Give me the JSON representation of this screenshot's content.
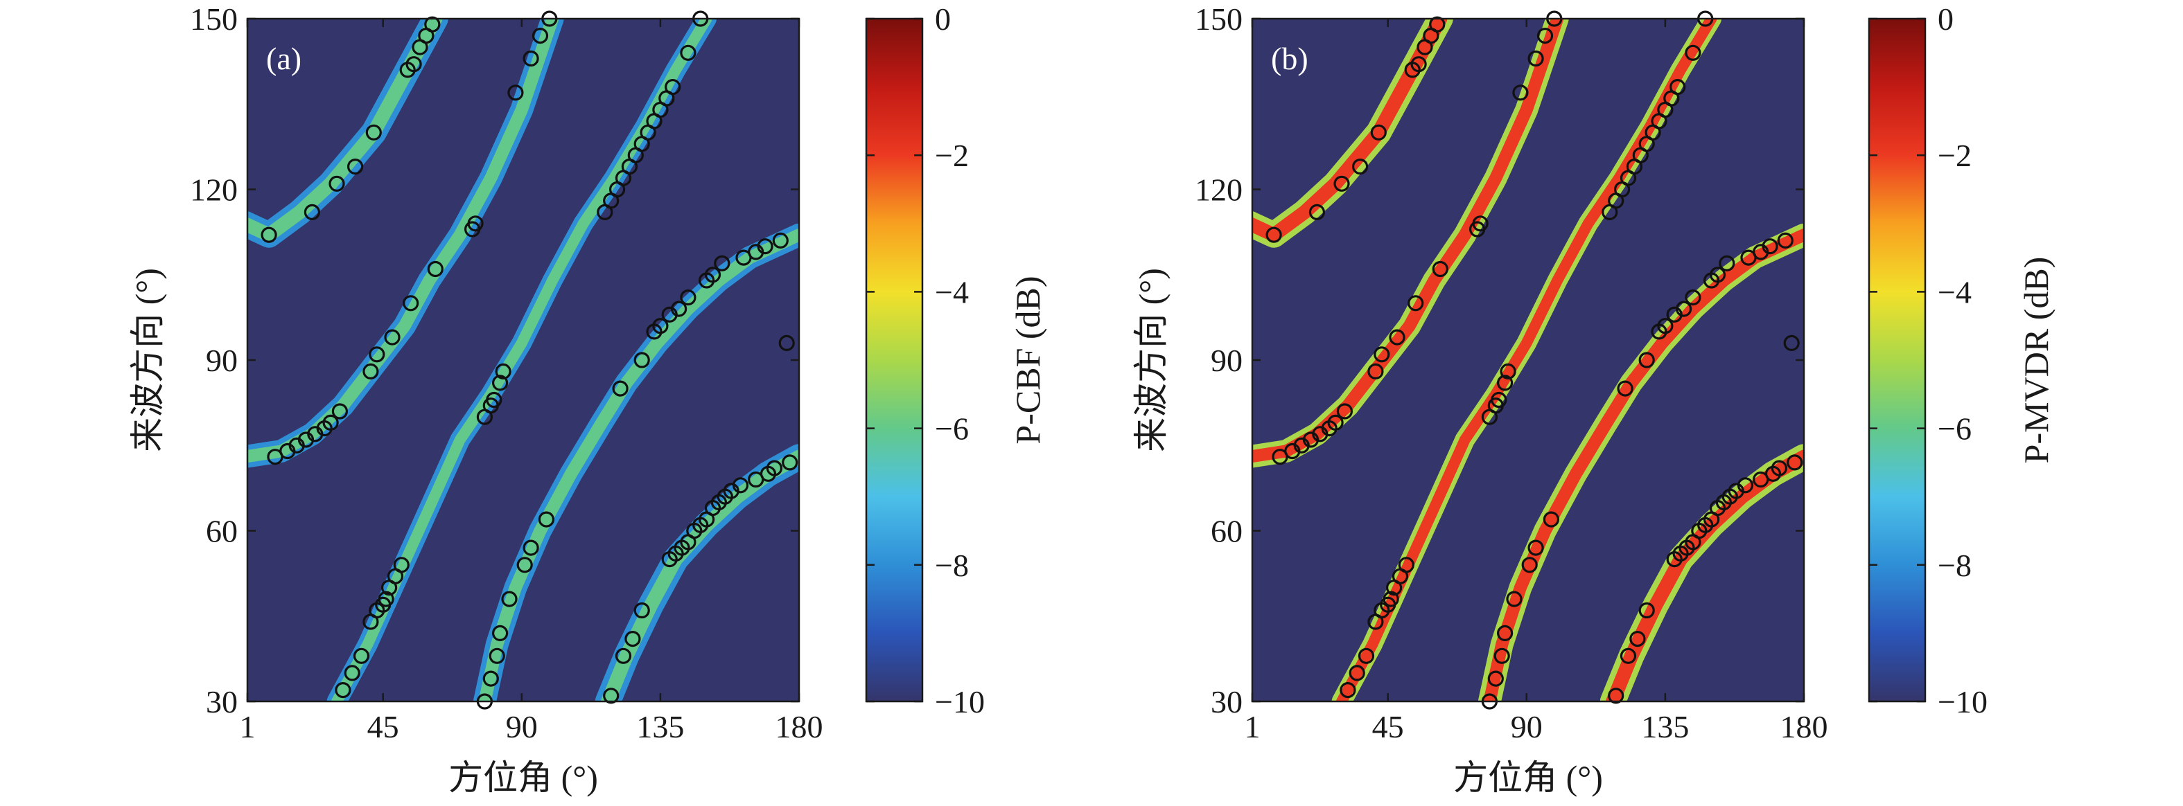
{
  "panels": [
    {
      "label": "(a)",
      "colorbar_label": "P-CBF (dB)"
    },
    {
      "label": "(b)",
      "colorbar_label": "P-MVDR (dB)"
    }
  ],
  "colors": {
    "background": "#34356a",
    "marker_edge": "#111111",
    "colormap": [
      "#34356a",
      "#2b55b8",
      "#2f8fd6",
      "#4cc0e8",
      "#63c98a",
      "#aad84a",
      "#f2e02a",
      "#f7a020",
      "#ec3a22",
      "#c21a14",
      "#7a0f0c"
    ]
  },
  "chart_data": [
    {
      "type": "heatmap",
      "panel": "(a)",
      "xlabel": "方位角 (°)",
      "ylabel": "来波方向 (°)",
      "colorbar_label": "P-CBF (dB)",
      "xlim": [
        1,
        180
      ],
      "ylim": [
        30,
        150
      ],
      "x_ticks": [
        1,
        45,
        90,
        135,
        180
      ],
      "y_ticks": [
        30,
        60,
        90,
        120,
        150
      ],
      "colorbar_ticks": [
        0,
        -2,
        -4,
        -6,
        -8,
        -10
      ],
      "colorbar_range": [
        -10,
        0
      ],
      "ridges": [
        {
          "points": [
            [
              0,
              114
            ],
            [
              8,
              112
            ],
            [
              18,
              116
            ],
            [
              28,
              121
            ],
            [
              42,
              130
            ],
            [
              52,
              140
            ],
            [
              62,
              150
            ]
          ],
          "intensity": 0.37,
          "width": 4.5
        },
        {
          "points": [
            [
              0,
              73
            ],
            [
              12,
              74
            ],
            [
              22,
              77
            ],
            [
              32,
              82
            ],
            [
              42,
              89
            ],
            [
              52,
              96
            ],
            [
              60,
              104
            ],
            [
              70,
              112
            ],
            [
              80,
              122
            ],
            [
              90,
              134
            ],
            [
              100,
              150
            ]
          ],
          "intensity": 0.36,
          "width": 4
        },
        {
          "points": [
            [
              30,
              30
            ],
            [
              40,
              40
            ],
            [
              50,
              52
            ],
            [
              60,
              64
            ],
            [
              70,
              76
            ],
            [
              80,
              84
            ],
            [
              90,
              93
            ],
            [
              100,
              104
            ],
            [
              110,
              114
            ],
            [
              120,
              122
            ],
            [
              130,
              131
            ],
            [
              140,
              141
            ],
            [
              150,
              150
            ]
          ],
          "intensity": 0.35,
          "width": 3.5
        },
        {
          "points": [
            [
              78,
              30
            ],
            [
              82,
              40
            ],
            [
              88,
              50
            ],
            [
              96,
              60
            ],
            [
              106,
              70
            ],
            [
              116,
              79
            ],
            [
              124,
              86
            ],
            [
              134,
              93
            ],
            [
              144,
              99
            ],
            [
              154,
              104
            ],
            [
              164,
              108
            ],
            [
              180,
              112
            ]
          ],
          "intensity": 0.35,
          "width": 4
        },
        {
          "points": [
            [
              118,
              30
            ],
            [
              124,
              38
            ],
            [
              132,
              47
            ],
            [
              140,
              55
            ],
            [
              150,
              61
            ],
            [
              160,
              66
            ],
            [
              170,
              70
            ],
            [
              180,
              73
            ]
          ],
          "intensity": 0.38,
          "width": 4.5
        }
      ],
      "circles": [
        [
          8,
          112
        ],
        [
          22,
          116
        ],
        [
          30,
          121
        ],
        [
          36,
          124
        ],
        [
          42,
          130
        ],
        [
          53,
          141
        ],
        [
          55,
          142
        ],
        [
          57,
          145
        ],
        [
          59,
          147
        ],
        [
          61,
          149
        ],
        [
          10,
          73
        ],
        [
          14,
          74
        ],
        [
          17,
          75
        ],
        [
          20,
          76
        ],
        [
          23,
          77
        ],
        [
          26,
          78
        ],
        [
          28,
          79
        ],
        [
          31,
          81
        ],
        [
          41,
          88
        ],
        [
          43,
          91
        ],
        [
          48,
          94
        ],
        [
          54,
          100
        ],
        [
          62,
          106
        ],
        [
          74,
          113
        ],
        [
          75,
          114
        ],
        [
          88,
          137
        ],
        [
          93,
          143
        ],
        [
          96,
          147
        ],
        [
          99,
          150
        ],
        [
          32,
          32
        ],
        [
          35,
          35
        ],
        [
          38,
          38
        ],
        [
          41,
          44
        ],
        [
          43,
          46
        ],
        [
          45,
          47
        ],
        [
          46,
          48
        ],
        [
          47,
          50
        ],
        [
          49,
          52
        ],
        [
          51,
          54
        ],
        [
          78,
          80
        ],
        [
          80,
          82
        ],
        [
          81,
          83
        ],
        [
          83,
          86
        ],
        [
          84,
          88
        ],
        [
          117,
          116
        ],
        [
          119,
          118
        ],
        [
          121,
          120
        ],
        [
          123,
          122
        ],
        [
          125,
          124
        ],
        [
          127,
          126
        ],
        [
          129,
          128
        ],
        [
          131,
          130
        ],
        [
          133,
          132
        ],
        [
          135,
          134
        ],
        [
          137,
          136
        ],
        [
          139,
          138
        ],
        [
          144,
          144
        ],
        [
          148,
          150
        ],
        [
          78,
          30
        ],
        [
          80,
          34
        ],
        [
          82,
          38
        ],
        [
          83,
          42
        ],
        [
          86,
          48
        ],
        [
          91,
          54
        ],
        [
          93,
          57
        ],
        [
          98,
          62
        ],
        [
          122,
          85
        ],
        [
          129,
          90
        ],
        [
          133,
          95
        ],
        [
          135,
          96
        ],
        [
          138,
          98
        ],
        [
          141,
          99
        ],
        [
          144,
          101
        ],
        [
          150,
          104
        ],
        [
          152,
          105
        ],
        [
          155,
          107
        ],
        [
          162,
          108
        ],
        [
          166,
          109
        ],
        [
          169,
          110
        ],
        [
          174,
          111
        ],
        [
          119,
          31
        ],
        [
          123,
          38
        ],
        [
          126,
          41
        ],
        [
          129,
          46
        ],
        [
          138,
          55
        ],
        [
          140,
          56
        ],
        [
          142,
          57
        ],
        [
          144,
          58
        ],
        [
          146,
          60
        ],
        [
          148,
          61
        ],
        [
          150,
          62
        ],
        [
          152,
          64
        ],
        [
          154,
          65
        ],
        [
          156,
          66
        ],
        [
          158,
          67
        ],
        [
          161,
          68
        ],
        [
          166,
          69
        ],
        [
          170,
          70
        ],
        [
          172,
          71
        ],
        [
          177,
          72
        ],
        [
          176,
          93
        ]
      ]
    },
    {
      "type": "heatmap",
      "panel": "(b)",
      "xlabel": "方位角 (°)",
      "ylabel": "来波方向 (°)",
      "colorbar_label": "P-MVDR (dB)",
      "xlim": [
        1,
        180
      ],
      "ylim": [
        30,
        150
      ],
      "x_ticks": [
        1,
        45,
        90,
        135,
        180
      ],
      "y_ticks": [
        30,
        60,
        90,
        120,
        150
      ],
      "colorbar_ticks": [
        0,
        -2,
        -4,
        -6,
        -8,
        -10
      ],
      "colorbar_range": [
        -10,
        0
      ],
      "ridges": [
        {
          "points": [
            [
              0,
              114
            ],
            [
              8,
              112
            ],
            [
              18,
              116
            ],
            [
              28,
              121
            ],
            [
              42,
              130
            ],
            [
              52,
              140
            ],
            [
              62,
              150
            ]
          ],
          "intensity": 0.83,
          "width": 4.5
        },
        {
          "points": [
            [
              0,
              73
            ],
            [
              12,
              74
            ],
            [
              22,
              77
            ],
            [
              32,
              82
            ],
            [
              42,
              89
            ],
            [
              52,
              96
            ],
            [
              60,
              104
            ],
            [
              70,
              112
            ],
            [
              80,
              122
            ],
            [
              90,
              134
            ],
            [
              100,
              150
            ]
          ],
          "intensity": 0.83,
          "width": 4
        },
        {
          "points": [
            [
              30,
              30
            ],
            [
              40,
              40
            ],
            [
              50,
              52
            ],
            [
              60,
              64
            ],
            [
              70,
              76
            ],
            [
              80,
              84
            ],
            [
              90,
              93
            ],
            [
              100,
              104
            ],
            [
              110,
              114
            ],
            [
              120,
              122
            ],
            [
              130,
              131
            ],
            [
              140,
              141
            ],
            [
              150,
              150
            ]
          ],
          "intensity": 0.82,
          "width": 3.5
        },
        {
          "points": [
            [
              78,
              30
            ],
            [
              82,
              40
            ],
            [
              88,
              50
            ],
            [
              96,
              60
            ],
            [
              106,
              70
            ],
            [
              116,
              79
            ],
            [
              124,
              86
            ],
            [
              134,
              93
            ],
            [
              144,
              99
            ],
            [
              154,
              104
            ],
            [
              164,
              108
            ],
            [
              180,
              112
            ]
          ],
          "intensity": 0.82,
          "width": 4
        },
        {
          "points": [
            [
              118,
              30
            ],
            [
              124,
              38
            ],
            [
              132,
              47
            ],
            [
              140,
              55
            ],
            [
              150,
              61
            ],
            [
              160,
              66
            ],
            [
              170,
              70
            ],
            [
              180,
              73
            ]
          ],
          "intensity": 0.83,
          "width": 4.5
        }
      ],
      "circles": [
        [
          8,
          112
        ],
        [
          22,
          116
        ],
        [
          30,
          121
        ],
        [
          36,
          124
        ],
        [
          42,
          130
        ],
        [
          53,
          141
        ],
        [
          55,
          142
        ],
        [
          57,
          145
        ],
        [
          59,
          147
        ],
        [
          61,
          149
        ],
        [
          10,
          73
        ],
        [
          14,
          74
        ],
        [
          17,
          75
        ],
        [
          20,
          76
        ],
        [
          23,
          77
        ],
        [
          26,
          78
        ],
        [
          28,
          79
        ],
        [
          31,
          81
        ],
        [
          41,
          88
        ],
        [
          43,
          91
        ],
        [
          48,
          94
        ],
        [
          54,
          100
        ],
        [
          62,
          106
        ],
        [
          74,
          113
        ],
        [
          75,
          114
        ],
        [
          88,
          137
        ],
        [
          93,
          143
        ],
        [
          96,
          147
        ],
        [
          99,
          150
        ],
        [
          32,
          32
        ],
        [
          35,
          35
        ],
        [
          38,
          38
        ],
        [
          41,
          44
        ],
        [
          43,
          46
        ],
        [
          45,
          47
        ],
        [
          46,
          48
        ],
        [
          47,
          50
        ],
        [
          49,
          52
        ],
        [
          51,
          54
        ],
        [
          78,
          80
        ],
        [
          80,
          82
        ],
        [
          81,
          83
        ],
        [
          83,
          86
        ],
        [
          84,
          88
        ],
        [
          117,
          116
        ],
        [
          119,
          118
        ],
        [
          121,
          120
        ],
        [
          123,
          122
        ],
        [
          125,
          124
        ],
        [
          127,
          126
        ],
        [
          129,
          128
        ],
        [
          131,
          130
        ],
        [
          133,
          132
        ],
        [
          135,
          134
        ],
        [
          137,
          136
        ],
        [
          139,
          138
        ],
        [
          144,
          144
        ],
        [
          148,
          150
        ],
        [
          78,
          30
        ],
        [
          80,
          34
        ],
        [
          82,
          38
        ],
        [
          83,
          42
        ],
        [
          86,
          48
        ],
        [
          91,
          54
        ],
        [
          93,
          57
        ],
        [
          98,
          62
        ],
        [
          122,
          85
        ],
        [
          129,
          90
        ],
        [
          133,
          95
        ],
        [
          135,
          96
        ],
        [
          138,
          98
        ],
        [
          141,
          99
        ],
        [
          144,
          101
        ],
        [
          150,
          104
        ],
        [
          152,
          105
        ],
        [
          155,
          107
        ],
        [
          162,
          108
        ],
        [
          166,
          109
        ],
        [
          169,
          110
        ],
        [
          174,
          111
        ],
        [
          119,
          31
        ],
        [
          123,
          38
        ],
        [
          126,
          41
        ],
        [
          129,
          46
        ],
        [
          138,
          55
        ],
        [
          140,
          56
        ],
        [
          142,
          57
        ],
        [
          144,
          58
        ],
        [
          146,
          60
        ],
        [
          148,
          61
        ],
        [
          150,
          62
        ],
        [
          152,
          64
        ],
        [
          154,
          65
        ],
        [
          156,
          66
        ],
        [
          158,
          67
        ],
        [
          161,
          68
        ],
        [
          166,
          69
        ],
        [
          170,
          70
        ],
        [
          172,
          71
        ],
        [
          177,
          72
        ],
        [
          176,
          93
        ]
      ]
    }
  ]
}
